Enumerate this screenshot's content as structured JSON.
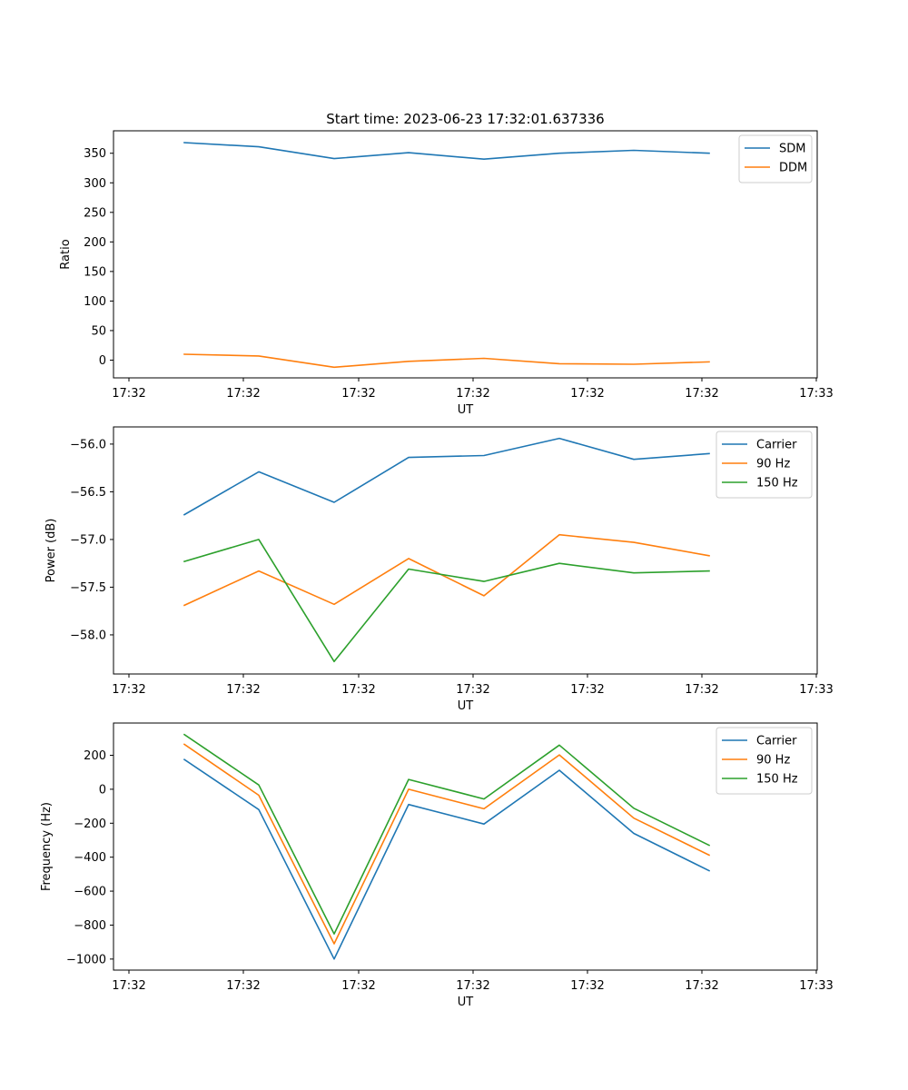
{
  "title": "Start time: 2023-06-23 17:32:01.637336",
  "colors": {
    "blue": "#1f77b4",
    "orange": "#ff7f0e",
    "green": "#2ca02c"
  },
  "chart_data": [
    {
      "type": "line",
      "ylabel": "Ratio",
      "xlabel": "UT",
      "xticks": [
        "17:32",
        "17:32",
        "17:32",
        "17:32",
        "17:32",
        "17:32",
        "17:33"
      ],
      "yticks": [
        "0",
        "50",
        "100",
        "150",
        "200",
        "250",
        "300",
        "350"
      ],
      "ylim": [
        -30,
        388
      ],
      "legend": "top-right",
      "series": [
        {
          "name": "SDM",
          "color": "#1f77b4",
          "values": [
            368,
            361,
            341,
            351,
            340,
            350,
            355,
            350
          ]
        },
        {
          "name": "DDM",
          "color": "#ff7f0e",
          "values": [
            10,
            7,
            -12,
            -2,
            3,
            -6,
            -7,
            -3
          ]
        }
      ]
    },
    {
      "type": "line",
      "ylabel": "Power (dB)",
      "xlabel": "UT",
      "xticks": [
        "17:32",
        "17:32",
        "17:32",
        "17:32",
        "17:32",
        "17:32",
        "17:33"
      ],
      "yticks": [
        "−58.0",
        "−57.5",
        "−57.0",
        "−56.5",
        "−56.0"
      ],
      "ylim": [
        -58.41,
        -55.82
      ],
      "legend": "top-right",
      "series": [
        {
          "name": "Carrier",
          "color": "#1f77b4",
          "values": [
            -56.74,
            -56.29,
            -56.61,
            -56.14,
            -56.12,
            -55.94,
            -56.16,
            -56.1
          ]
        },
        {
          "name": "90 Hz",
          "color": "#ff7f0e",
          "values": [
            -57.69,
            -57.33,
            -57.68,
            -57.2,
            -57.59,
            -56.95,
            -57.03,
            -57.17
          ]
        },
        {
          "name": "150 Hz",
          "color": "#2ca02c",
          "values": [
            -57.23,
            -57.0,
            -58.28,
            -57.31,
            -57.44,
            -57.25,
            -57.35,
            -57.33
          ]
        }
      ]
    },
    {
      "type": "line",
      "ylabel": "Frequency (Hz)",
      "xlabel": "UT",
      "xticks": [
        "17:32",
        "17:32",
        "17:32",
        "17:32",
        "17:32",
        "17:32",
        "17:33"
      ],
      "yticks": [
        "−1000",
        "−800",
        "−600",
        "−400",
        "−200",
        "0",
        "200"
      ],
      "ylim": [
        -1065,
        390
      ],
      "legend": "top-right",
      "series": [
        {
          "name": "Carrier",
          "color": "#1f77b4",
          "values": [
            175,
            -120,
            -1000,
            -90,
            -205,
            112,
            -260,
            -480
          ]
        },
        {
          "name": "90 Hz",
          "color": "#ff7f0e",
          "values": [
            265,
            -35,
            -910,
            0,
            -115,
            202,
            -170,
            -388
          ]
        },
        {
          "name": "150 Hz",
          "color": "#2ca02c",
          "values": [
            322,
            25,
            -852,
            58,
            -57,
            260,
            -112,
            -330
          ]
        }
      ]
    }
  ]
}
